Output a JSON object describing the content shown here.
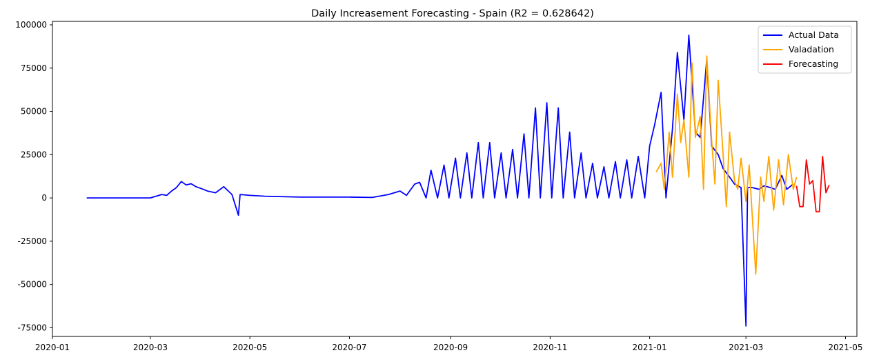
{
  "chart_data": {
    "type": "line",
    "title": "Daily Increasement Forecasting - Spain (R2 = 0.628642)",
    "xlabel": "",
    "ylabel": "",
    "xlim": [
      "2020-01-01",
      "2021-05-08"
    ],
    "ylim": [
      -80000,
      102000
    ],
    "x_ticks": [
      "2020-01",
      "2020-03",
      "2020-05",
      "2020-07",
      "2020-09",
      "2020-11",
      "2021-01",
      "2021-03",
      "2021-05"
    ],
    "y_ticks": [
      -75000,
      -50000,
      -25000,
      0,
      25000,
      50000,
      75000,
      100000
    ],
    "grid": false,
    "legend_position": "top-right",
    "series": [
      {
        "name": "Actual Data",
        "color": "#0000ff",
        "x": [
          "2020-01-22",
          "2020-03-01",
          "2020-03-08",
          "2020-03-11",
          "2020-03-14",
          "2020-03-17",
          "2020-03-20",
          "2020-03-23",
          "2020-03-26",
          "2020-03-29",
          "2020-04-01",
          "2020-04-05",
          "2020-04-10",
          "2020-04-15",
          "2020-04-20",
          "2020-04-24",
          "2020-04-25",
          "2020-05-01",
          "2020-05-10",
          "2020-06-01",
          "2020-07-01",
          "2020-07-15",
          "2020-07-25",
          "2020-08-01",
          "2020-08-05",
          "2020-08-10",
          "2020-08-13",
          "2020-08-17",
          "2020-08-20",
          "2020-08-24",
          "2020-08-28",
          "2020-08-31",
          "2020-09-04",
          "2020-09-07",
          "2020-09-11",
          "2020-09-14",
          "2020-09-18",
          "2020-09-21",
          "2020-09-25",
          "2020-09-28",
          "2020-10-02",
          "2020-10-05",
          "2020-10-09",
          "2020-10-12",
          "2020-10-16",
          "2020-10-19",
          "2020-10-23",
          "2020-10-26",
          "2020-10-30",
          "2020-11-02",
          "2020-11-06",
          "2020-11-09",
          "2020-11-13",
          "2020-11-16",
          "2020-11-20",
          "2020-11-23",
          "2020-11-27",
          "2020-11-30",
          "2020-12-04",
          "2020-12-07",
          "2020-12-11",
          "2020-12-14",
          "2020-12-18",
          "2020-12-21",
          "2020-12-25",
          "2020-12-29",
          "2021-01-01",
          "2021-01-04",
          "2021-01-08",
          "2021-01-11",
          "2021-01-15",
          "2021-01-18",
          "2021-01-22",
          "2021-01-25",
          "2021-01-29",
          "2021-02-01",
          "2021-02-05",
          "2021-02-08",
          "2021-02-12",
          "2021-02-15",
          "2021-02-19",
          "2021-02-22",
          "2021-02-26",
          "2021-03-01",
          "2021-03-02",
          "2021-03-05",
          "2021-03-09",
          "2021-03-12",
          "2021-03-16",
          "2021-03-19",
          "2021-03-23",
          "2021-03-26",
          "2021-03-30"
        ],
        "y": [
          0,
          0,
          2000,
          1500,
          4000,
          6000,
          9500,
          7500,
          8200,
          6500,
          5500,
          4000,
          3000,
          6500,
          2000,
          -10000,
          2000,
          1500,
          1000,
          500,
          500,
          300,
          2000,
          4000,
          1500,
          8000,
          9000,
          0,
          16000,
          0,
          19000,
          0,
          23000,
          0,
          26000,
          0,
          32000,
          0,
          32000,
          0,
          26000,
          0,
          28000,
          0,
          37000,
          0,
          52000,
          0,
          55000,
          0,
          52000,
          0,
          38000,
          0,
          26000,
          0,
          20000,
          0,
          18000,
          0,
          21000,
          0,
          22000,
          0,
          24000,
          0,
          30000,
          42000,
          61000,
          0,
          40000,
          84000,
          45000,
          94000,
          38000,
          35000,
          80000,
          30000,
          25000,
          17000,
          12000,
          8000,
          6000,
          -74000,
          6000,
          6000,
          5000,
          7000,
          6000,
          5000,
          13000,
          5000,
          8000
        ]
      },
      {
        "name": "Valadation",
        "color": "#ffa500",
        "x": [
          "2021-01-05",
          "2021-01-08",
          "2021-01-10",
          "2021-01-13",
          "2021-01-15",
          "2021-01-18",
          "2021-01-20",
          "2021-01-22",
          "2021-01-25",
          "2021-01-27",
          "2021-01-29",
          "2021-02-01",
          "2021-02-03",
          "2021-02-05",
          "2021-02-08",
          "2021-02-10",
          "2021-02-12",
          "2021-02-15",
          "2021-02-17",
          "2021-02-19",
          "2021-02-22",
          "2021-02-24",
          "2021-02-26",
          "2021-03-01",
          "2021-03-03",
          "2021-03-05",
          "2021-03-07",
          "2021-03-10",
          "2021-03-12",
          "2021-03-15",
          "2021-03-18",
          "2021-03-21",
          "2021-03-24",
          "2021-03-27",
          "2021-03-30",
          "2021-04-01"
        ],
        "y": [
          15000,
          20000,
          5000,
          38000,
          12000,
          60000,
          32000,
          45000,
          12000,
          78000,
          35000,
          47000,
          5000,
          82000,
          33000,
          8000,
          68000,
          25000,
          -5000,
          38000,
          10000,
          5000,
          23000,
          -2000,
          19000,
          -12000,
          -44000,
          12000,
          -2000,
          24000,
          -7000,
          22000,
          -4000,
          25000,
          5000,
          12000
        ]
      },
      {
        "name": "Forecasting",
        "color": "#ff0000",
        "x": [
          "2021-04-01",
          "2021-04-03",
          "2021-04-05",
          "2021-04-07",
          "2021-04-09",
          "2021-04-11",
          "2021-04-13",
          "2021-04-15",
          "2021-04-17",
          "2021-04-19",
          "2021-04-21"
        ],
        "y": [
          7000,
          -5000,
          -5000,
          22000,
          8000,
          10000,
          -8000,
          -8000,
          24000,
          3000,
          7500
        ]
      }
    ]
  }
}
